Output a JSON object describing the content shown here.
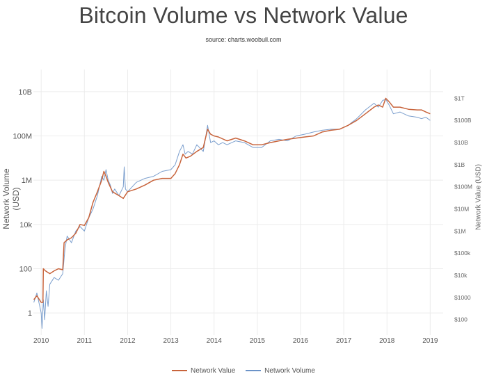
{
  "title": "Bitcoin Volume vs Network Value",
  "subtitle": "source: charts.woobull.com",
  "chart_data": {
    "type": "line",
    "title": "Bitcoin Volume vs Network Value",
    "subtitle": "source: charts.woobull.com",
    "ylabel": "Network Volume (USD)",
    "y2label": "Network Value (USD)",
    "yscale": "log",
    "xlim": [
      2009.82,
      2019.3
    ],
    "ylim": [
      0.1,
      100000000000
    ],
    "y2lim": [
      20,
      20000000000000
    ],
    "x_ticks": [
      2010,
      2011,
      2012,
      2013,
      2014,
      2015,
      2016,
      2017,
      2018,
      2019
    ],
    "x_tick_labels": [
      "2010",
      "2011",
      "2012",
      "2013",
      "2014",
      "2015",
      "2016",
      "2017",
      "2018",
      "2019"
    ],
    "y_ticks": [
      1,
      100,
      10000,
      1000000,
      100000000,
      10000000000
    ],
    "y_tick_labels": [
      "1",
      "100",
      "10k",
      "1M",
      "100M",
      "10B"
    ],
    "y2_ticks": [
      100,
      1000,
      10000,
      100000,
      1000000,
      10000000,
      100000000,
      1000000000,
      10000000000,
      100000000000,
      1000000000000
    ],
    "y2_tick_labels": [
      "$100",
      "$1000",
      "$10k",
      "$100k",
      "$1M",
      "$10M",
      "$100M",
      "$1B",
      "$10B",
      "$100B",
      "$1T"
    ],
    "grid": true,
    "legend_position": "bottom-center",
    "series": [
      {
        "name": "Network Value",
        "axis": "left",
        "color": "#c8643c",
        "x": [
          2009.83,
          2009.9,
          2010.0,
          2010.04,
          2010.05,
          2010.1,
          2010.2,
          2010.3,
          2010.4,
          2010.5,
          2010.53,
          2010.6,
          2010.7,
          2010.8,
          2010.9,
          2011.0,
          2011.1,
          2011.2,
          2011.3,
          2011.4,
          2011.45,
          2011.5,
          2011.55,
          2011.65,
          2011.8,
          2011.9,
          2012.0,
          2012.2,
          2012.4,
          2012.6,
          2012.8,
          2013.0,
          2013.1,
          2013.2,
          2013.28,
          2013.35,
          2013.45,
          2013.6,
          2013.75,
          2013.85,
          2013.92,
          2014.0,
          2014.1,
          2014.3,
          2014.5,
          2014.7,
          2014.9,
          2015.1,
          2015.3,
          2015.5,
          2015.7,
          2015.9,
          2016.1,
          2016.3,
          2016.5,
          2016.7,
          2016.9,
          2017.1,
          2017.3,
          2017.5,
          2017.7,
          2017.8,
          2017.9,
          2017.97,
          2018.05,
          2018.15,
          2018.3,
          2018.5,
          2018.7,
          2018.8,
          2018.9,
          2019.0
        ],
        "values": [
          4,
          6,
          3,
          3,
          100,
          80,
          60,
          80,
          100,
          90,
          1500,
          2000,
          2500,
          4000,
          10000,
          9000,
          20000,
          100000,
          300000,
          1000000,
          2500000,
          1500000,
          800000,
          300000,
          200000,
          150000,
          300000,
          400000,
          600000,
          1000000,
          1200000,
          1200000,
          2000000,
          5000000,
          15000000,
          10000000,
          12000000,
          20000000,
          30000000,
          200000000,
          120000000,
          100000000,
          90000000,
          60000000,
          80000000,
          60000000,
          40000000,
          40000000,
          50000000,
          60000000,
          70000000,
          80000000,
          90000000,
          100000000,
          150000000,
          180000000,
          200000000,
          300000000,
          500000000,
          1000000000,
          2000000000,
          2500000000,
          2000000000,
          5000000000,
          3500000000,
          2000000000,
          2000000000,
          1600000000,
          1500000000,
          1500000000,
          1200000000,
          1000000000
        ]
      },
      {
        "name": "Network Volume",
        "axis": "left",
        "color": "#6b93c8",
        "x": [
          2009.83,
          2009.9,
          2010.0,
          2010.02,
          2010.05,
          2010.08,
          2010.12,
          2010.16,
          2010.2,
          2010.3,
          2010.4,
          2010.5,
          2010.55,
          2010.6,
          2010.7,
          2010.8,
          2010.9,
          2011.0,
          2011.1,
          2011.2,
          2011.3,
          2011.4,
          2011.45,
          2011.5,
          2011.55,
          2011.6,
          2011.65,
          2011.7,
          2011.8,
          2011.9,
          2011.92,
          2011.95,
          2012.0,
          2012.2,
          2012.4,
          2012.6,
          2012.8,
          2013.0,
          2013.1,
          2013.2,
          2013.28,
          2013.33,
          2013.4,
          2013.5,
          2013.6,
          2013.75,
          2013.85,
          2013.92,
          2014.0,
          2014.1,
          2014.2,
          2014.3,
          2014.5,
          2014.7,
          2014.9,
          2015.1,
          2015.3,
          2015.5,
          2015.7,
          2015.9,
          2016.1,
          2016.3,
          2016.5,
          2016.7,
          2016.9,
          2017.1,
          2017.3,
          2017.5,
          2017.7,
          2017.8,
          2017.9,
          2017.97,
          2018.05,
          2018.15,
          2018.3,
          2018.5,
          2018.7,
          2018.8,
          2018.9,
          2019.0
        ],
        "values": [
          3,
          8,
          1,
          0.2,
          4,
          0.5,
          10,
          2,
          20,
          40,
          30,
          60,
          800,
          3000,
          1500,
          5000,
          8000,
          5000,
          20000,
          50000,
          200000,
          1500000,
          1000000,
          3000000,
          1000000,
          600000,
          250000,
          400000,
          200000,
          500000,
          4000000,
          400000,
          300000,
          800000,
          1200000,
          1500000,
          2500000,
          3000000,
          5000000,
          20000000,
          40000000,
          15000000,
          20000000,
          15000000,
          40000000,
          20000000,
          300000000,
          50000000,
          60000000,
          40000000,
          50000000,
          40000000,
          60000000,
          50000000,
          30000000,
          30000000,
          60000000,
          70000000,
          60000000,
          100000000,
          120000000,
          150000000,
          180000000,
          200000000,
          200000000,
          300000000,
          600000000,
          1500000000,
          3000000000,
          2000000000,
          4000000000,
          4500000000,
          2500000000,
          1000000000,
          1200000000,
          800000000,
          700000000,
          600000000,
          700000000,
          500000000
        ]
      }
    ]
  },
  "legend": {
    "items": [
      {
        "label": "Network Value",
        "color": "#c8643c"
      },
      {
        "label": "Network Volume",
        "color": "#6b93c8"
      }
    ]
  }
}
